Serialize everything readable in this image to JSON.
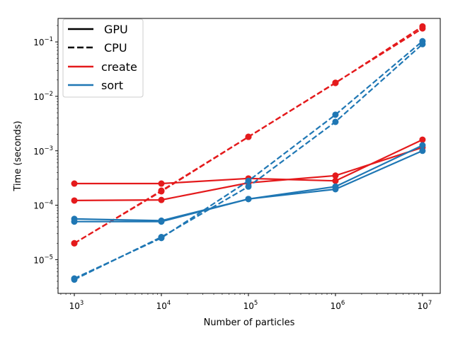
{
  "chart_data": {
    "type": "line",
    "title": "",
    "xlabel": "Number of particles",
    "ylabel": "Time (seconds)",
    "xscale": "log",
    "yscale": "log",
    "xlim": [
      650,
      16000000
    ],
    "ylim": [
      2.4e-06,
      0.27
    ],
    "x_ticks": [
      {
        "value": 1000,
        "base": "10",
        "exp": "3"
      },
      {
        "value": 10000,
        "base": "10",
        "exp": "4"
      },
      {
        "value": 100000,
        "base": "10",
        "exp": "5"
      },
      {
        "value": 1000000,
        "base": "10",
        "exp": "6"
      },
      {
        "value": 10000000,
        "base": "10",
        "exp": "7"
      }
    ],
    "y_ticks": [
      {
        "value": 1e-05,
        "base": "10",
        "exp": "−5"
      },
      {
        "value": 0.0001,
        "base": "10",
        "exp": "−4"
      },
      {
        "value": 0.001,
        "base": "10",
        "exp": "−3"
      },
      {
        "value": 0.01,
        "base": "10",
        "exp": "−2"
      },
      {
        "value": 0.1,
        "base": "10",
        "exp": "−1"
      }
    ],
    "grid": false,
    "legend": {
      "placement": "top-left",
      "entries": [
        {
          "label": "GPU",
          "color": "#000000",
          "style": "solid"
        },
        {
          "label": "CPU",
          "color": "#000000",
          "style": "dashed"
        },
        {
          "label": "create",
          "color": "#e41a1c",
          "style": "solid"
        },
        {
          "label": "sort",
          "color": "#1f77b4",
          "style": "solid"
        }
      ]
    },
    "x": [
      1000,
      10000,
      100000,
      1000000,
      10000000
    ],
    "series": [
      {
        "kind": "create",
        "device": "GPU",
        "color": "#e41a1c",
        "style": "solid",
        "values": [
          0.00025,
          0.00025,
          0.00031,
          0.00028,
          0.0016
        ]
      },
      {
        "kind": "create",
        "device": "GPU",
        "color": "#e41a1c",
        "style": "solid",
        "values": [
          0.000122,
          0.000125,
          0.000258,
          0.00035,
          0.00115
        ]
      },
      {
        "kind": "create",
        "device": "CPU",
        "color": "#e41a1c",
        "style": "dashed",
        "values": [
          2e-05,
          0.00018,
          0.0018,
          0.0176,
          0.193
        ]
      },
      {
        "kind": "create",
        "device": "CPU",
        "color": "#e41a1c",
        "style": "dashed",
        "values": [
          2e-05,
          0.000185,
          0.00181,
          0.0178,
          0.177
        ]
      },
      {
        "kind": "sort",
        "device": "CPU",
        "color": "#1f77b4",
        "style": "dashed",
        "values": [
          4.5e-06,
          2.5e-05,
          0.00028,
          0.0046,
          0.103
        ]
      },
      {
        "kind": "sort",
        "device": "CPU",
        "color": "#1f77b4",
        "style": "dashed",
        "values": [
          4.3e-06,
          2.6e-05,
          0.00022,
          0.0034,
          0.091
        ]
      },
      {
        "kind": "sort",
        "device": "GPU",
        "color": "#1f77b4",
        "style": "solid",
        "values": [
          5.6e-05,
          5.2e-05,
          0.00013,
          0.00022,
          0.00126
        ]
      },
      {
        "kind": "sort",
        "device": "GPU",
        "color": "#1f77b4",
        "style": "solid",
        "values": [
          5e-05,
          5e-05,
          0.00013,
          0.000197,
          0.001
        ]
      }
    ]
  }
}
